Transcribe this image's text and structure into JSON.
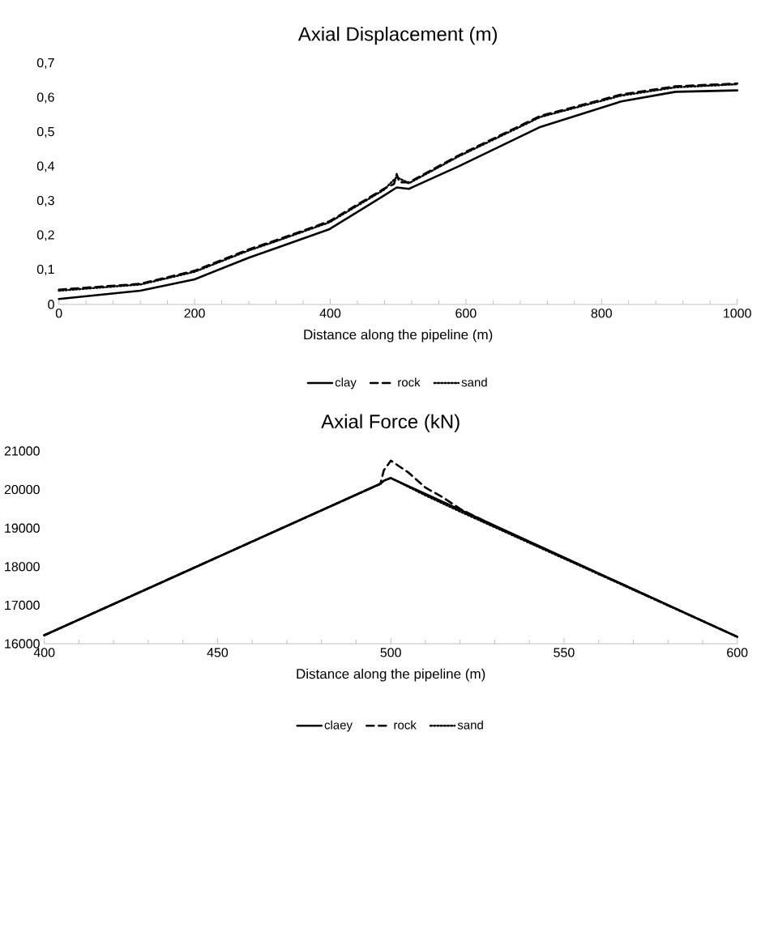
{
  "chart_data": [
    {
      "type": "line",
      "title": "Axial Displacement (m)",
      "xlabel": "Distance along the pipeline (m)",
      "xlim": [
        0,
        1000
      ],
      "ylim": [
        0,
        0.7
      ],
      "xticks": [
        0,
        200,
        400,
        600,
        800,
        1000
      ],
      "yticks": [
        0,
        {
          "value": 0.1,
          "label": "0,1"
        },
        {
          "value": 0.2,
          "label": "0,2"
        },
        {
          "value": 0.3,
          "label": "0,3"
        },
        {
          "value": 0.4,
          "label": "0,4"
        },
        {
          "value": 0.5,
          "label": "0,5"
        },
        {
          "value": 0.6,
          "label": "0,6"
        },
        {
          "value": 0.7,
          "label": "0,7"
        }
      ],
      "legend": "bottom",
      "grid": false,
      "series": [
        {
          "name": "clay",
          "color": "#000000",
          "line_style": "solid",
          "x": [
            0,
            120,
            200,
            280,
            319,
            399,
            479,
            498,
            516,
            590,
            710,
            829,
            909,
            1000
          ],
          "values": [
            0.016,
            0.04,
            0.073,
            0.136,
            0.163,
            0.219,
            0.316,
            0.34,
            0.336,
            0.402,
            0.516,
            0.59,
            0.618,
            0.622
          ]
        },
        {
          "name": "rock",
          "color": "#000000",
          "line_style": "dashed",
          "x": [
            0,
            120,
            200,
            280,
            319,
            399,
            479,
            494,
            498,
            502,
            516,
            590,
            710,
            829,
            909,
            1000
          ],
          "values": [
            0.043,
            0.06,
            0.098,
            0.16,
            0.186,
            0.242,
            0.336,
            0.35,
            0.379,
            0.355,
            0.355,
            0.434,
            0.548,
            0.61,
            0.634,
            0.642
          ]
        },
        {
          "name": "sand",
          "color": "#000000",
          "line_style": "dotted",
          "x": [
            0,
            120,
            200,
            280,
            319,
            399,
            479,
            498,
            516,
            590,
            710,
            829,
            909,
            1000
          ],
          "values": [
            0.04,
            0.058,
            0.095,
            0.157,
            0.183,
            0.239,
            0.333,
            0.37,
            0.352,
            0.431,
            0.545,
            0.607,
            0.631,
            0.64
          ]
        }
      ]
    },
    {
      "type": "line",
      "title": "Axial Force (kN)",
      "xlabel": "Distance along the pipeline (m)",
      "xlim": [
        400,
        600
      ],
      "ylim": [
        16000,
        21000
      ],
      "xticks": [
        400,
        450,
        500,
        550,
        600
      ],
      "yticks": [
        16000,
        17000,
        18000,
        19000,
        20000,
        21000
      ],
      "legend": "bottom",
      "grid": false,
      "series": [
        {
          "name": "claey",
          "color": "#000000",
          "line_style": "solid",
          "x": [
            400,
            497,
            498,
            500,
            600
          ],
          "values": [
            16220,
            20150,
            20230,
            20300,
            16180
          ]
        },
        {
          "name": "rock",
          "color": "#000000",
          "line_style": "dashed",
          "x": [
            400,
            497,
            498,
            500,
            505,
            510,
            515,
            520,
            530,
            600
          ],
          "values": [
            16220,
            20150,
            20500,
            20750,
            20450,
            20050,
            19800,
            19500,
            19050,
            16180
          ]
        },
        {
          "name": "sand",
          "color": "#000000",
          "line_style": "dotted",
          "x": [
            400,
            497,
            498,
            500,
            510,
            520,
            600
          ],
          "values": [
            16220,
            20150,
            20230,
            20300,
            19850,
            19430,
            16180
          ]
        }
      ]
    }
  ]
}
